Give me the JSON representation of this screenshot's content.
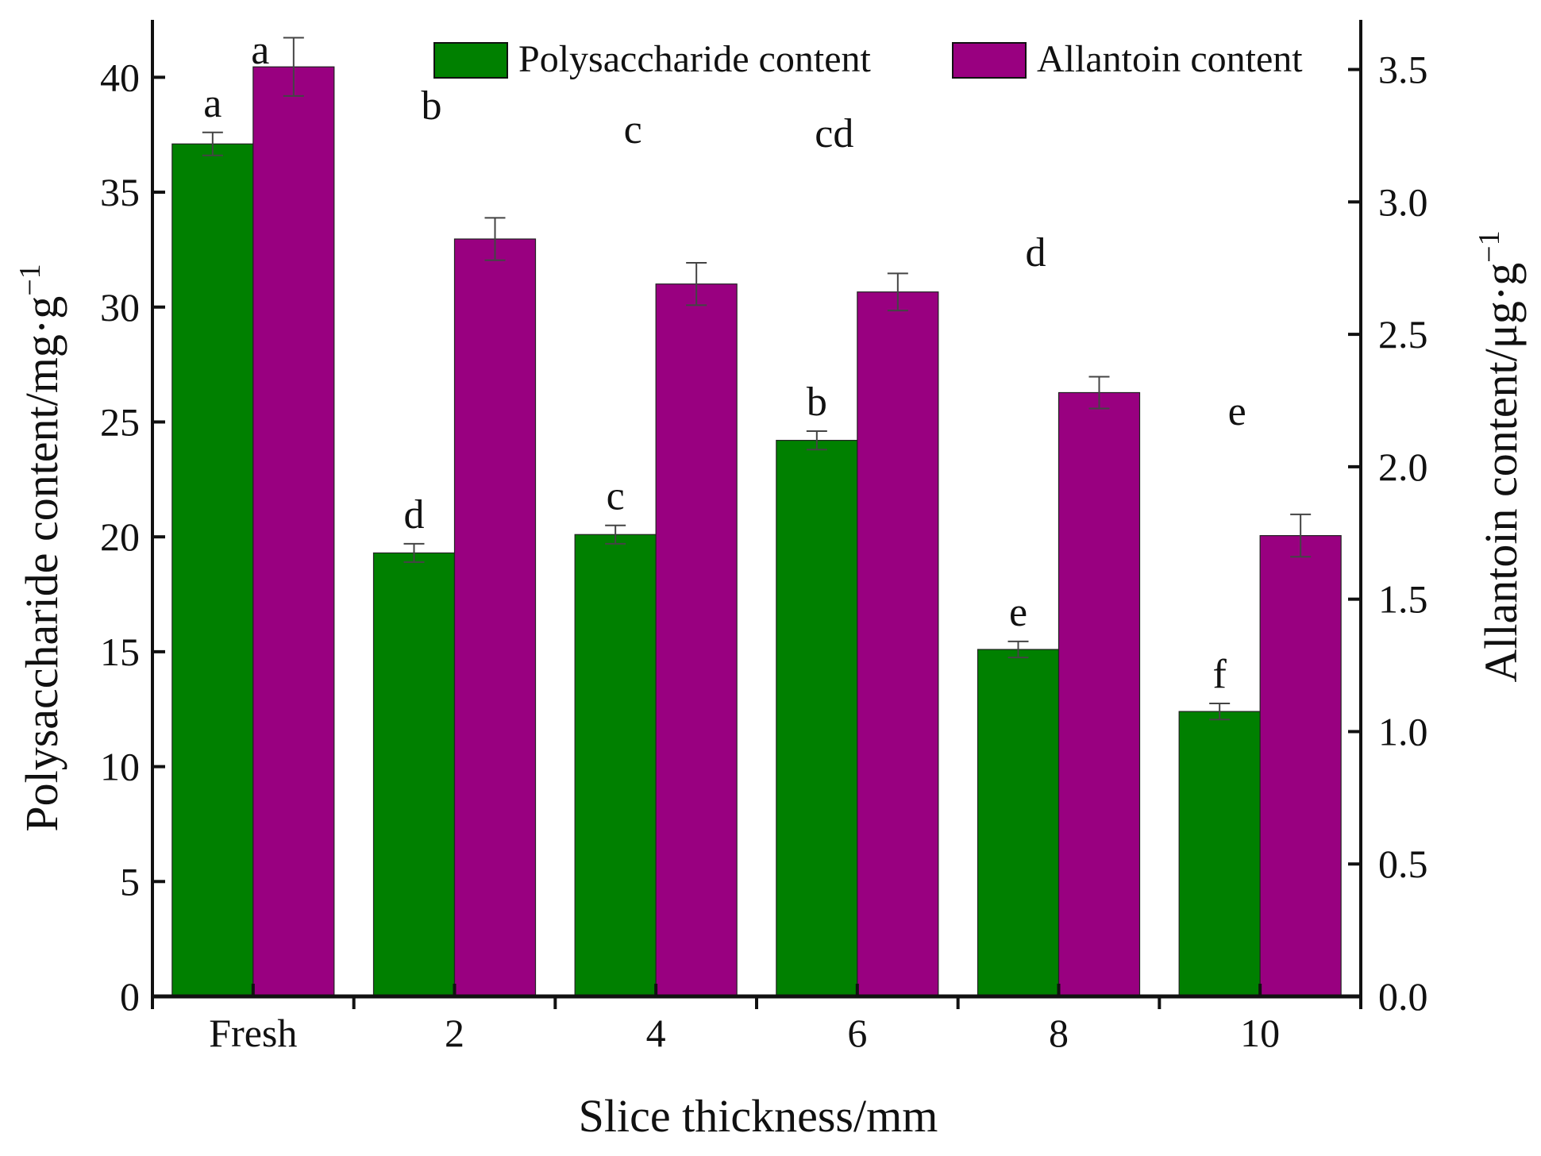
{
  "chart_data": {
    "type": "bar",
    "xlabel": "Slice thickness/mm",
    "ylabel_left": "Polysaccharide content/mg·g",
    "ylabel_left_exponent": "−1",
    "ylabel_right": "Allantoin content/μg·g",
    "ylabel_right_exponent": "−1",
    "categories": [
      "Fresh",
      "2",
      "4",
      "6",
      "8",
      "10"
    ],
    "ylim_left": [
      0,
      42.5
    ],
    "ylim_right": [
      0,
      3.6875
    ],
    "yticks_left": [
      0,
      5,
      10,
      15,
      20,
      25,
      30,
      35,
      40
    ],
    "yticks_right": [
      0.0,
      0.5,
      1.0,
      1.5,
      2.0,
      2.5,
      3.0,
      3.5
    ],
    "yticks_right_labels": [
      "0.0",
      "0.5",
      "1.0",
      "1.5",
      "2.0",
      "2.5",
      "3.0",
      "3.5"
    ],
    "series": [
      {
        "name": "Polysaccharide content",
        "axis": "left",
        "color": "#008000",
        "values": [
          37.1,
          19.3,
          20.1,
          24.2,
          15.1,
          12.4
        ],
        "errors": [
          0.5,
          0.4,
          0.4,
          0.4,
          0.35,
          0.35
        ],
        "letters": [
          "a",
          "d",
          "c",
          "b",
          "e",
          "f"
        ]
      },
      {
        "name": "Allantoin content",
        "axis": "right",
        "color": "#990080",
        "values": [
          3.51,
          2.86,
          2.69,
          2.66,
          2.28,
          1.74
        ],
        "errors": [
          0.11,
          0.08,
          0.08,
          0.07,
          0.06,
          0.08
        ],
        "letters": [
          "a",
          "b",
          "c",
          "cd",
          "d",
          "e"
        ]
      }
    ],
    "legend": {
      "location": "top",
      "entries": [
        "Polysaccharide content",
        "Allantoin content"
      ]
    }
  }
}
